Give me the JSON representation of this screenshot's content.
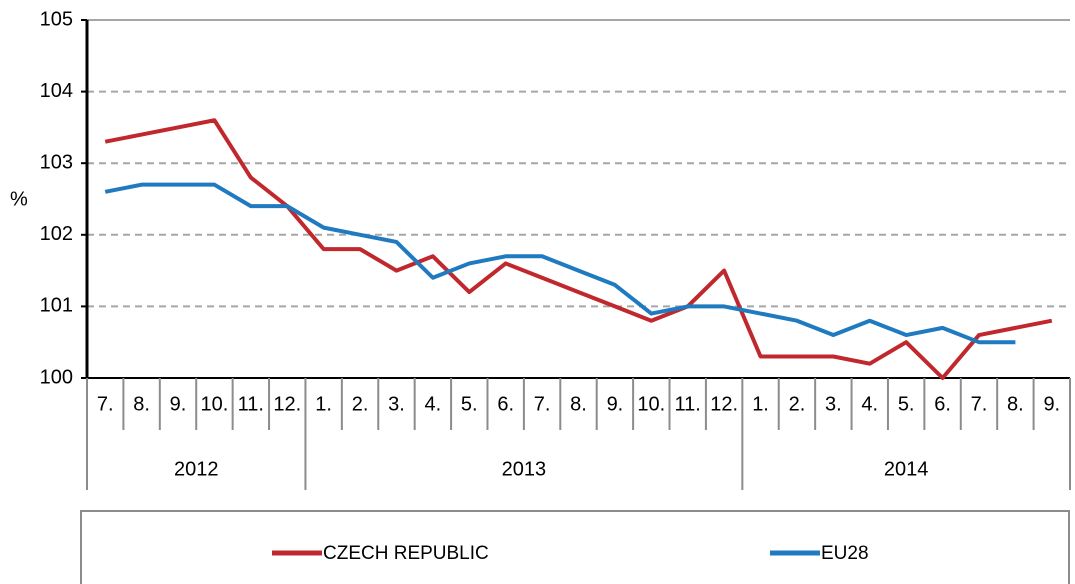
{
  "chart_data": {
    "type": "line",
    "y_label": "%",
    "groups": [
      {
        "label": "2012",
        "categories": [
          "7.",
          "8.",
          "9.",
          "10.",
          "11.",
          "12."
        ]
      },
      {
        "label": "2013",
        "categories": [
          "1.",
          "2.",
          "3.",
          "4.",
          "5.",
          "6.",
          "7.",
          "8.",
          "9.",
          "10.",
          "11.",
          "12."
        ]
      },
      {
        "label": "2014",
        "categories": [
          "1.",
          "2.",
          "3.",
          "4.",
          "5.",
          "6.",
          "7.",
          "8.",
          "9."
        ]
      }
    ],
    "series": [
      {
        "name": "CZECH REPUBLIC",
        "color": "#c0282d",
        "values": [
          103.3,
          103.4,
          103.5,
          103.6,
          102.8,
          102.4,
          101.8,
          101.8,
          101.5,
          101.7,
          101.2,
          101.6,
          101.4,
          101.2,
          101.0,
          100.8,
          101.0,
          101.5,
          100.3,
          100.3,
          100.3,
          100.2,
          100.5,
          100.0,
          100.6,
          100.7,
          100.8
        ]
      },
      {
        "name": "EU28",
        "color": "#1f7ac0",
        "values": [
          102.6,
          102.7,
          102.7,
          102.7,
          102.4,
          102.4,
          102.1,
          102.0,
          101.9,
          101.4,
          101.6,
          101.7,
          101.7,
          101.5,
          101.3,
          100.9,
          101.0,
          101.0,
          100.9,
          100.8,
          100.6,
          100.8,
          100.6,
          100.7,
          100.5,
          100.5,
          null
        ]
      }
    ],
    "ylim": [
      100,
      105
    ],
    "yticks": [
      100,
      101,
      102,
      103,
      104,
      105
    ],
    "grid": true,
    "legend": "bottom"
  }
}
